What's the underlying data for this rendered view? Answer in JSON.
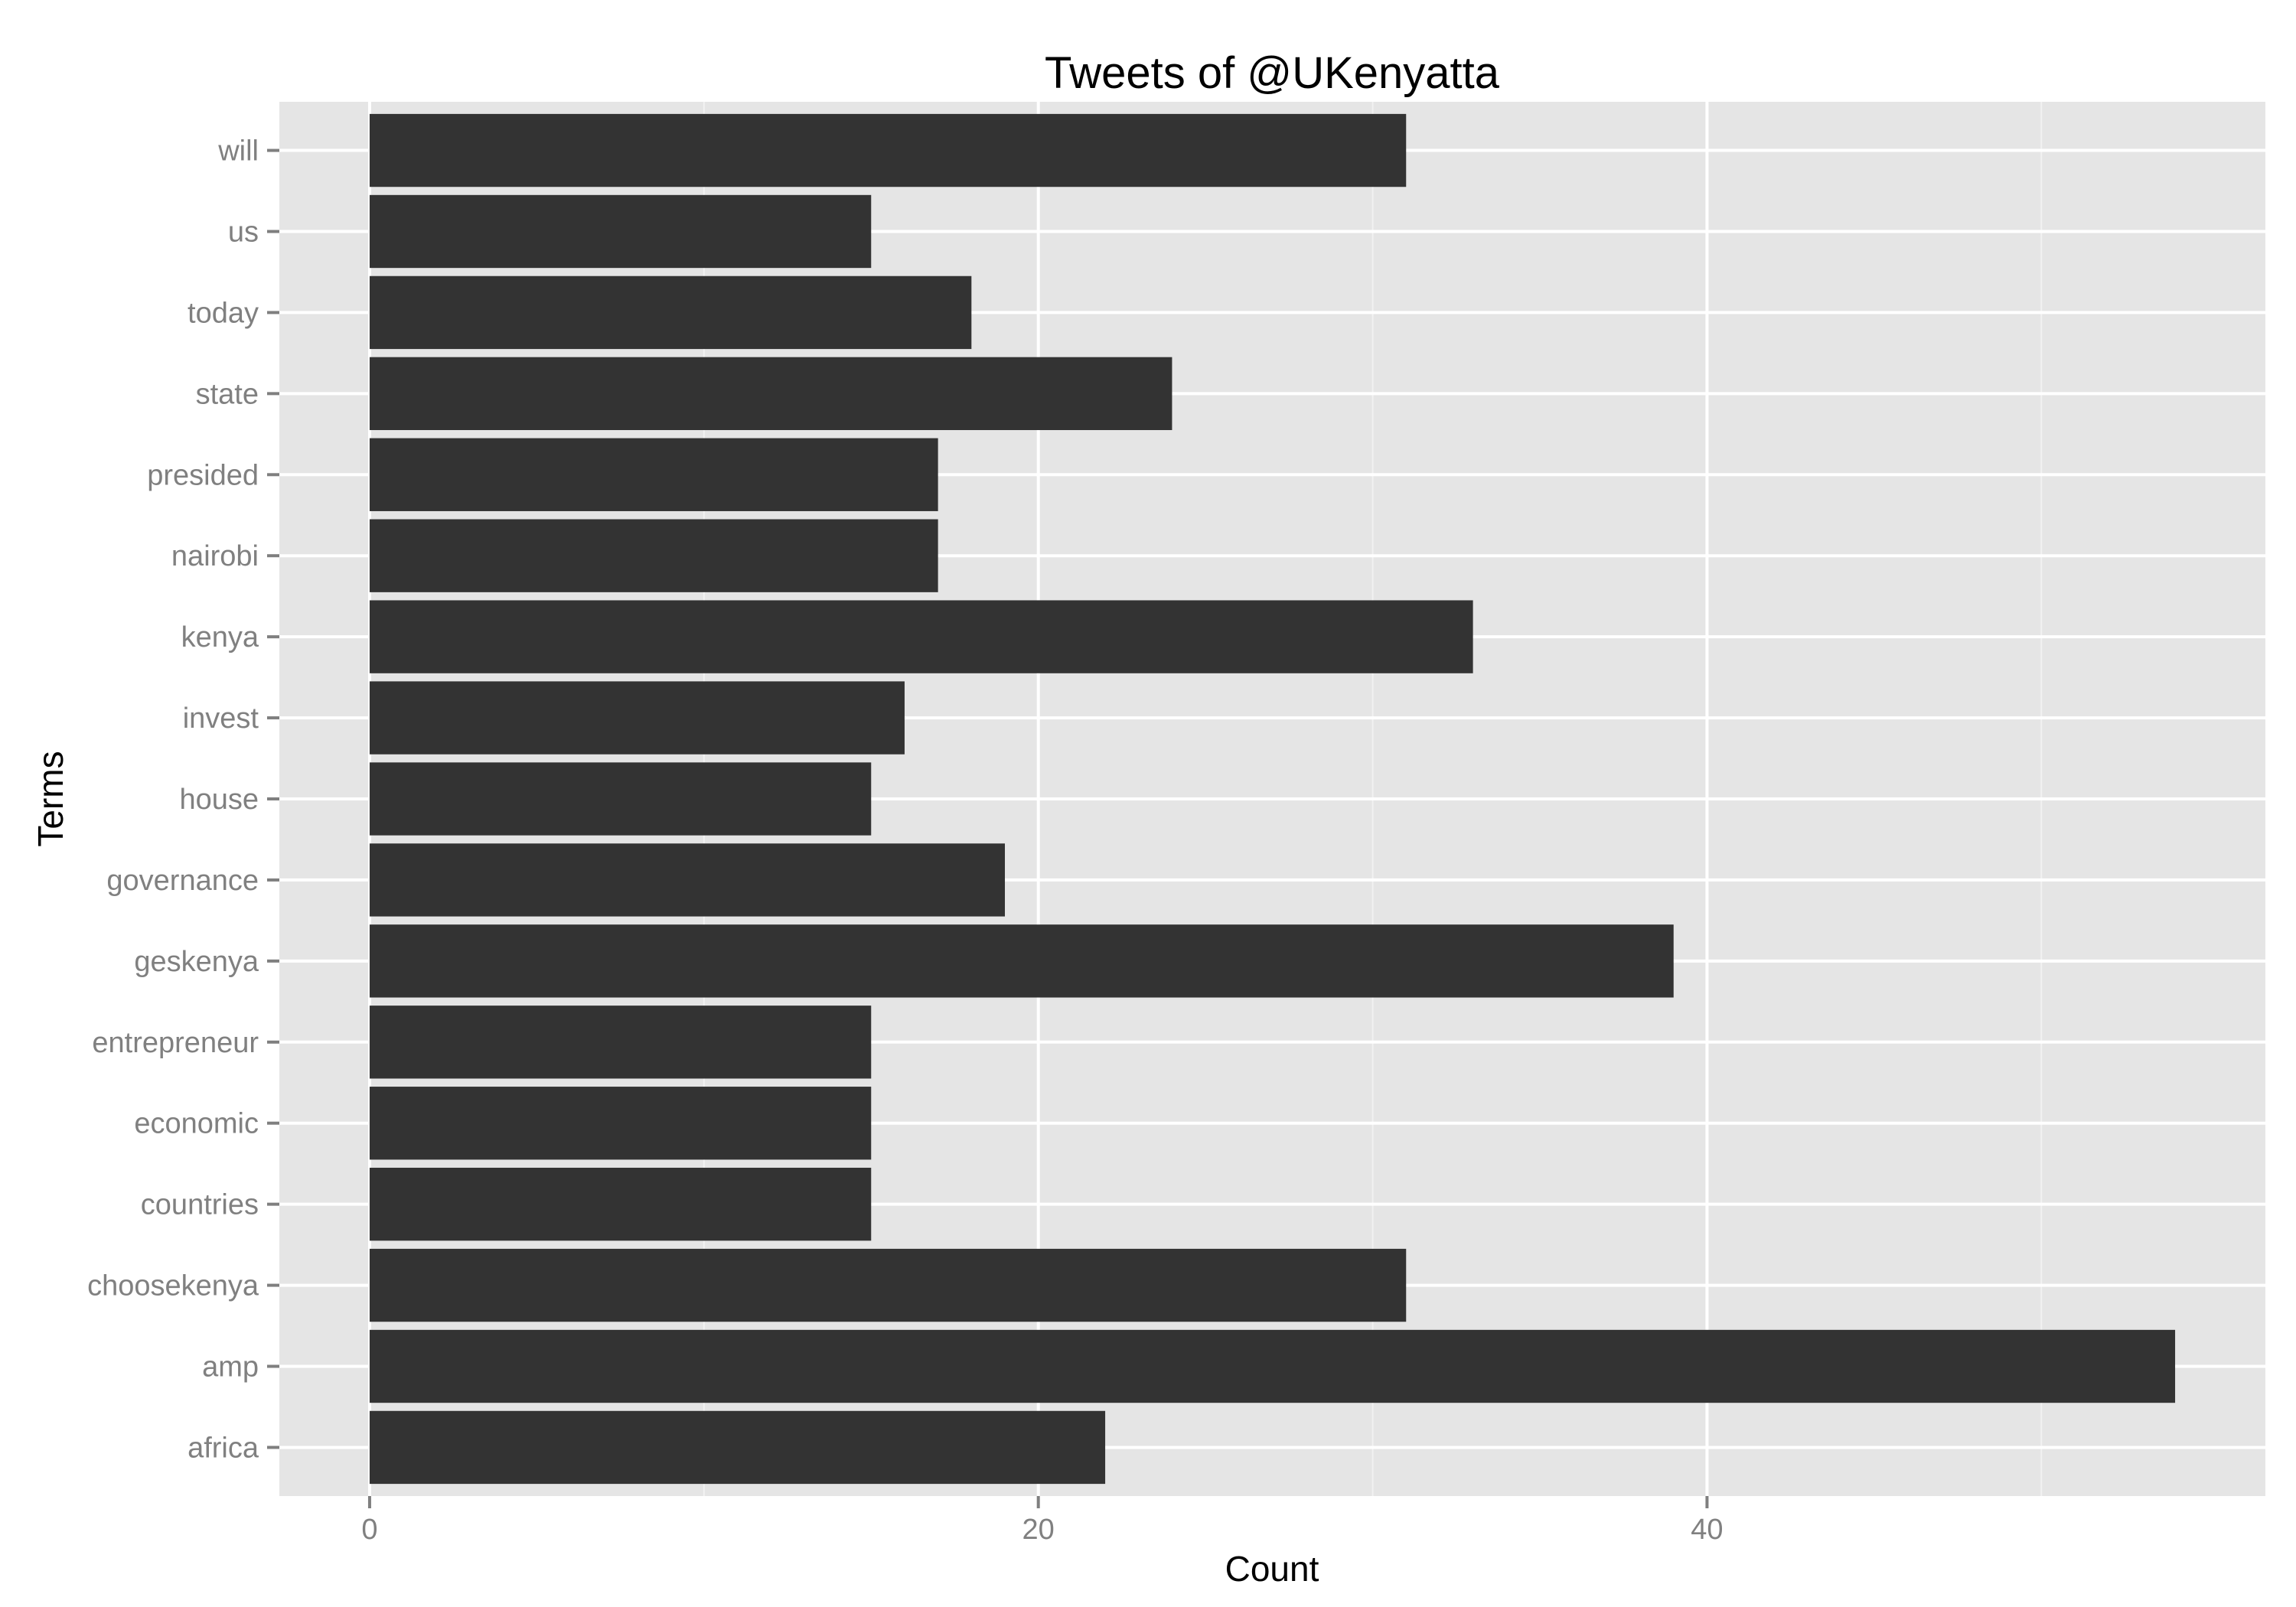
{
  "chart_data": {
    "type": "bar",
    "orientation": "horizontal",
    "title": "Tweets of @UKenyatta",
    "xlabel": "Count",
    "ylabel": "Terms",
    "categories": [
      "africa",
      "amp",
      "choosekenya",
      "countries",
      "economic",
      "entrepreneur",
      "geskenya",
      "governance",
      "house",
      "invest",
      "kenya",
      "nairobi",
      "presided",
      "state",
      "today",
      "us",
      "will"
    ],
    "values": [
      22,
      54,
      31,
      15,
      15,
      15,
      39,
      19,
      15,
      16,
      33,
      17,
      17,
      24,
      18,
      15,
      31
    ],
    "xlim": [
      -2.7,
      56.7
    ],
    "xticks": [
      0,
      20,
      40
    ],
    "grid": true,
    "legend": "none",
    "colors": {
      "bar": "#333333",
      "panel": "#e5e5e5",
      "grid_major": "#ffffff",
      "grid_minor": "#f2f2f2"
    }
  }
}
